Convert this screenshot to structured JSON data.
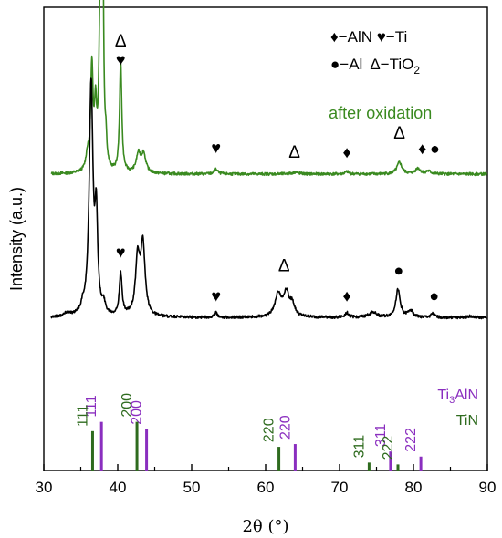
{
  "chart_data": {
    "type": "line",
    "title": "",
    "xlabel": "2θ (°)",
    "ylabel": "Intensity (a.u.)",
    "xlim": [
      30,
      90
    ],
    "xticks": [
      30,
      40,
      50,
      60,
      70,
      80,
      90
    ],
    "grid": false,
    "legend": {
      "placement": "top-right",
      "line1": "♦−AlN ♥−Ti",
      "line2_a": "●−Al",
      "line2_b": "Δ−TiO",
      "line2_sub": "2"
    },
    "series": [
      {
        "name": "after oxidation",
        "color": "#3a8a20",
        "baseline": 0.64,
        "peaks": [
          [
            35.9,
            0.03,
            0.25
          ],
          [
            36.5,
            0.22,
            0.2
          ],
          [
            37.0,
            0.12,
            0.18
          ],
          [
            37.6,
            0.3,
            0.18
          ],
          [
            37.95,
            0.6,
            0.14
          ],
          [
            38.4,
            0.05,
            0.14
          ],
          [
            40.4,
            0.24,
            0.18
          ],
          [
            42.8,
            0.04,
            0.35
          ],
          [
            43.5,
            0.04,
            0.35
          ],
          [
            53.3,
            0.01,
            0.3
          ],
          [
            64.0,
            0.004,
            0.5
          ],
          [
            71.0,
            0.005,
            0.3
          ],
          [
            78.1,
            0.025,
            0.4
          ],
          [
            80.6,
            0.012,
            0.4
          ],
          [
            82.0,
            0.006,
            0.4
          ]
        ],
        "markers": [
          {
            "symbol": "Δ",
            "x": 40.4,
            "y": 0.915
          },
          {
            "symbol": "♥",
            "x": 40.4,
            "y": 0.875
          },
          {
            "symbol": "♥",
            "x": 53.3,
            "y": 0.685
          },
          {
            "symbol": "Δ",
            "x": 63.9,
            "y": 0.675
          },
          {
            "symbol": "♦",
            "x": 71.0,
            "y": 0.675
          },
          {
            "symbol": "Δ",
            "x": 78.1,
            "y": 0.717
          },
          {
            "symbol": "♦",
            "x": 81.2,
            "y": 0.683
          },
          {
            "symbol": "●",
            "x": 82.9,
            "y": 0.683
          }
        ]
      },
      {
        "name": "",
        "color": "#000000",
        "baseline": 0.33,
        "peaks": [
          [
            33.2,
            0.008,
            0.5
          ],
          [
            35.3,
            0.015,
            0.3
          ],
          [
            36.4,
            0.5,
            0.3
          ],
          [
            37.1,
            0.2,
            0.22
          ],
          [
            38.1,
            0.02,
            0.25
          ],
          [
            40.4,
            0.09,
            0.22
          ],
          [
            42.7,
            0.12,
            0.35
          ],
          [
            43.4,
            0.15,
            0.35
          ],
          [
            53.3,
            0.01,
            0.25
          ],
          [
            61.7,
            0.05,
            0.5
          ],
          [
            62.8,
            0.05,
            0.45
          ],
          [
            63.6,
            0.025,
            0.4
          ],
          [
            71.0,
            0.01,
            0.3
          ],
          [
            74.5,
            0.012,
            0.6
          ],
          [
            77.9,
            0.06,
            0.35
          ],
          [
            79.6,
            0.015,
            0.4
          ],
          [
            82.6,
            0.008,
            0.3
          ],
          [
            87.6,
            0.003,
            0.4
          ]
        ],
        "markers": [
          {
            "symbol": "♥",
            "x": 40.4,
            "y": 0.46
          },
          {
            "symbol": "♥",
            "x": 53.3,
            "y": 0.365
          },
          {
            "symbol": "Δ",
            "x": 62.5,
            "y": 0.43
          },
          {
            "symbol": "♦",
            "x": 71.0,
            "y": 0.365
          },
          {
            "symbol": "●",
            "x": 78.0,
            "y": 0.42
          },
          {
            "symbol": "●",
            "x": 82.8,
            "y": 0.365
          }
        ]
      }
    ],
    "series_label": {
      "text": "after oxidation",
      "x": 82.5,
      "y": 0.76
    },
    "references": [
      {
        "name": "Ti",
        "name_sub": "3",
        "name_tail": "AlN",
        "color": "#8a2ebf",
        "lines": [
          {
            "x": 37.8,
            "h": 0.105,
            "hkl": "111"
          },
          {
            "x": 43.9,
            "h": 0.089,
            "hkl": "200"
          },
          {
            "x": 64.0,
            "h": 0.057,
            "hkl": "220"
          },
          {
            "x": 76.9,
            "h": 0.041,
            "hkl": "311"
          },
          {
            "x": 81.0,
            "h": 0.03,
            "hkl": "222"
          }
        ]
      },
      {
        "name": "TiN",
        "color": "#2e6b1e",
        "lines": [
          {
            "x": 36.6,
            "h": 0.085,
            "hkl": "111"
          },
          {
            "x": 42.6,
            "h": 0.105,
            "hkl": "200"
          },
          {
            "x": 61.8,
            "h": 0.051,
            "hkl": "220"
          },
          {
            "x": 74.0,
            "h": 0.017,
            "hkl": "311"
          },
          {
            "x": 77.9,
            "h": 0.013,
            "hkl": "222"
          }
        ]
      }
    ]
  }
}
